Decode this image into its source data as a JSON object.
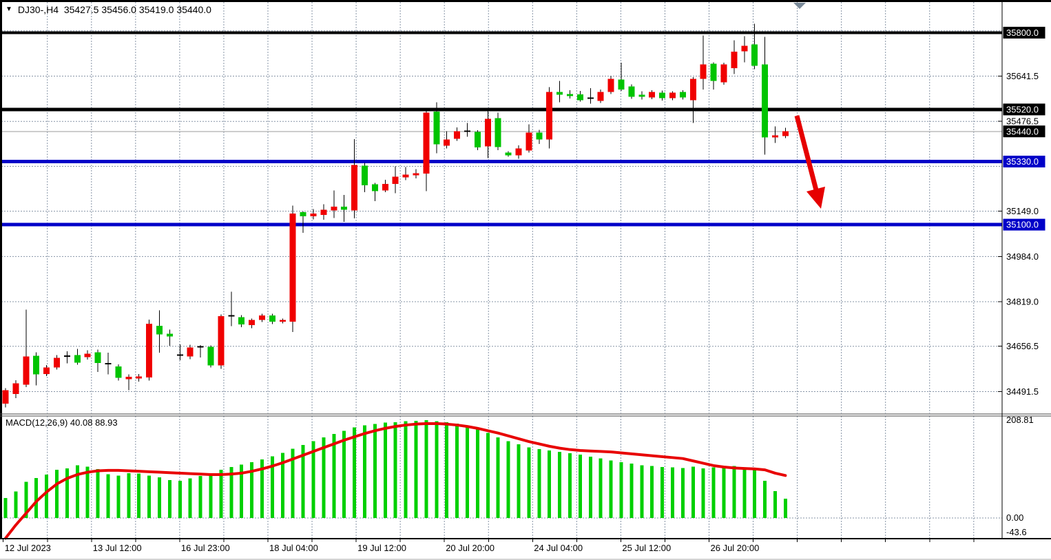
{
  "window": {
    "app": "trading-chart"
  },
  "title": {
    "symbol_period": "DJ30-,H4",
    "ohlc_line": "35427.5 35456.0 35419.0 35440.0"
  },
  "colors": {
    "bull_candle": "#f00000",
    "bear_candle": "#00c400",
    "doji": "#000000",
    "hist_green": "#00d000",
    "signal_red": "#e80000",
    "arrow_red": "#e60000",
    "level_black": "#000000",
    "level_blue": "#0000c8",
    "bid_line": "#9b9b9b",
    "grid": "#8593a5",
    "badge_black": "#000000",
    "badge_blue": "#0000c8",
    "badge_text": "#ffffff",
    "shift_marker": "#7a8a99",
    "background": "#ffffff"
  },
  "chart_data": [
    {
      "type": "candlestick",
      "title": "DJ30-,H4",
      "legend_position": "top-left",
      "grid": "on",
      "ylim_visible": [
        34412,
        35911
      ],
      "price_axis_labels": [
        "35641.5",
        "35476.5",
        "35149.0",
        "34984.0",
        "34819.0",
        "34656.5",
        "34491.5"
      ],
      "price_axis_label_values": [
        35641.5,
        35476.5,
        35149.0,
        34984.0,
        34819.0,
        34656.5,
        34491.5
      ],
      "grid_prices": [
        35806.5,
        35641.5,
        35476.5,
        35312.5,
        35149.0,
        34984.0,
        34819.0,
        34656.5,
        34491.5
      ],
      "badges": [
        {
          "text": "35800.0",
          "value": 35800.0,
          "style": "black"
        },
        {
          "text": "35520.0",
          "value": 35520.0,
          "style": "black"
        },
        {
          "text": "35440.0",
          "value": 35440.0,
          "style": "black"
        },
        {
          "text": "35330.0",
          "value": 35330.0,
          "style": "blue"
        },
        {
          "text": "35100.0",
          "value": 35100.0,
          "style": "blue"
        }
      ],
      "hlines": [
        {
          "value": 35800.0,
          "color": "black",
          "width": 4
        },
        {
          "value": 35520.0,
          "color": "black",
          "width": 5
        },
        {
          "value": 35330.0,
          "color": "blue",
          "width": 5
        },
        {
          "value": 35100.0,
          "color": "blue",
          "width": 5
        }
      ],
      "current_price": {
        "value": 35440.0,
        "text": "35440.0"
      },
      "time_axis_labels": [
        {
          "m": 0,
          "label": "12 Jul 2023"
        },
        {
          "m": 2,
          "label": "13 Jul 12:00"
        },
        {
          "m": 4,
          "label": "16 Jul 23:00"
        },
        {
          "m": 6,
          "label": "18 Jul 04:00"
        },
        {
          "m": 8,
          "label": "19 Jul 12:00"
        },
        {
          "m": 10,
          "label": "20 Jul 20:00"
        },
        {
          "m": 12,
          "label": "24 Jul 04:00"
        },
        {
          "m": 14,
          "label": "25 Jul 12:00"
        },
        {
          "m": 16,
          "label": "26 Jul 20:00"
        }
      ],
      "arrow_annotation": {
        "from_price_xy": [
          1157,
          168
        ],
        "to_price_xy": [
          1192,
          303
        ]
      },
      "candles_ohlc": [
        [
          34448,
          34504,
          34434,
          34496
        ],
        [
          34482,
          34533,
          34468,
          34521
        ],
        [
          34516,
          34790,
          34508,
          34620
        ],
        [
          34622,
          34634,
          34514,
          34554
        ],
        [
          34556,
          34588,
          34548,
          34579
        ],
        [
          34579,
          34625,
          34572,
          34614
        ],
        [
          34617,
          34638,
          34594,
          34621
        ],
        [
          34625,
          34647,
          34589,
          34597
        ],
        [
          34617,
          34642,
          34608,
          34629
        ],
        [
          34635,
          34645,
          34563,
          34595
        ],
        [
          34589,
          34633,
          34554,
          34593
        ],
        [
          34583,
          34591,
          34532,
          34541
        ],
        [
          34537,
          34554,
          34497,
          34545
        ],
        [
          34539,
          34556,
          34528,
          34547
        ],
        [
          34543,
          34754,
          34532,
          34739
        ],
        [
          34731,
          34788,
          34633,
          34700
        ],
        [
          34702,
          34718,
          34658,
          34692
        ],
        [
          34620,
          34664,
          34606,
          34624
        ],
        [
          34619,
          34662,
          34610,
          34652
        ],
        [
          34650,
          34661,
          34616,
          34654
        ],
        [
          34654,
          34660,
          34579,
          34587
        ],
        [
          34587,
          34772,
          34574,
          34766
        ],
        [
          34763,
          34855,
          34730,
          34768
        ],
        [
          34763,
          34770,
          34726,
          34736
        ],
        [
          34734,
          34758,
          34722,
          34752
        ],
        [
          34752,
          34775,
          34745,
          34769
        ],
        [
          34769,
          34775,
          34738,
          34746
        ],
        [
          34746,
          34758,
          34740,
          34752
        ],
        [
          34746,
          35169,
          34708,
          35141
        ],
        [
          35145,
          35148,
          35070,
          35131
        ],
        [
          35131,
          35157,
          35119,
          35141
        ],
        [
          35135,
          35175,
          35118,
          35154
        ],
        [
          35152,
          35225,
          35124,
          35166
        ],
        [
          35166,
          35208,
          35110,
          35154
        ],
        [
          35152,
          35412,
          35123,
          35318
        ],
        [
          35315,
          35325,
          35219,
          35244
        ],
        [
          35247,
          35252,
          35186,
          35222
        ],
        [
          35225,
          35263,
          35218,
          35248
        ],
        [
          35248,
          35313,
          35215,
          35275
        ],
        [
          35273,
          35310,
          35262,
          35283
        ],
        [
          35280,
          35302,
          35268,
          35288
        ],
        [
          35286,
          35520,
          35222,
          35509
        ],
        [
          35512,
          35546,
          35360,
          35393
        ],
        [
          35388,
          35441,
          35378,
          35411
        ],
        [
          35413,
          35455,
          35405,
          35441
        ],
        [
          35437,
          35471,
          35421,
          35441
        ],
        [
          35438,
          35445,
          35372,
          35381
        ],
        [
          35386,
          35516,
          35343,
          35486
        ],
        [
          35488,
          35509,
          35371,
          35383
        ],
        [
          35363,
          35368,
          35348,
          35353
        ],
        [
          35353,
          35389,
          35340,
          35378
        ],
        [
          35370,
          35466,
          35363,
          35435
        ],
        [
          35435,
          35446,
          35394,
          35410
        ],
        [
          35410,
          35601,
          35378,
          35584
        ],
        [
          35584,
          35624,
          35546,
          35574
        ],
        [
          35576,
          35590,
          35560,
          35569
        ],
        [
          35575,
          35588,
          35548,
          35554
        ],
        [
          35558,
          35597,
          35541,
          35561
        ],
        [
          35551,
          35592,
          35544,
          35584
        ],
        [
          35584,
          35642,
          35576,
          35632
        ],
        [
          35629,
          35690,
          35588,
          35592
        ],
        [
          35604,
          35612,
          35559,
          35566
        ],
        [
          35574,
          35586,
          35556,
          35566
        ],
        [
          35564,
          35590,
          35558,
          35584
        ],
        [
          35581,
          35589,
          35552,
          35561
        ],
        [
          35561,
          35586,
          35554,
          35581
        ],
        [
          35584,
          35590,
          35556,
          35564
        ],
        [
          35554,
          35638,
          35471,
          35631
        ],
        [
          35631,
          35790,
          35592,
          35684
        ],
        [
          35687,
          35692,
          35592,
          35624
        ],
        [
          35619,
          35690,
          35610,
          35684
        ],
        [
          35670,
          35772,
          35649,
          35731
        ],
        [
          35732,
          35787,
          35692,
          35752
        ],
        [
          35757,
          35833,
          35667,
          35679
        ],
        [
          35684,
          35785,
          35355,
          35418
        ],
        [
          35418,
          35458,
          35398,
          35426
        ],
        [
          35423,
          35453,
          35416,
          35441
        ]
      ]
    },
    {
      "type": "bar",
      "title": "MACD(12,26,9)",
      "legend": "MACD(12,26,9) 40.08 88.93",
      "main_value": "40.08",
      "signal_value": "88.93",
      "axis_labels": [
        "208.81",
        "0.00",
        "-43.6"
      ],
      "ylim_visible": [
        -45,
        216
      ],
      "histogram": [
        42,
        56,
        77,
        85,
        92,
        102,
        105,
        112,
        109,
        104,
        93,
        90,
        95,
        94,
        90,
        86,
        80,
        79,
        84,
        89,
        95,
        102,
        108,
        113,
        118,
        124,
        131,
        138,
        147,
        155,
        163,
        171,
        178,
        185,
        192,
        196,
        199,
        202,
        203,
        205,
        206,
        207,
        205,
        203,
        200,
        196,
        189,
        180,
        171,
        163,
        156,
        150,
        146,
        143,
        140,
        137,
        134,
        130,
        126,
        122,
        118,
        115,
        112,
        110,
        108,
        107,
        106,
        109,
        105,
        107,
        108,
        110,
        105,
        105,
        79,
        57,
        41
      ],
      "signal": [
        -43,
        -15,
        10,
        35,
        55,
        72,
        84,
        92,
        97,
        100,
        101,
        101,
        100,
        99,
        98,
        97,
        96,
        95,
        94,
        93,
        92,
        92,
        93,
        95,
        99,
        104,
        110,
        117,
        125,
        133,
        141,
        149,
        157,
        165,
        172,
        179,
        185,
        190,
        194,
        197,
        199,
        200,
        200,
        199,
        197,
        194,
        190,
        185,
        180,
        174,
        168,
        162,
        157,
        152,
        148,
        145,
        143,
        142,
        141,
        140,
        138,
        136,
        134,
        132,
        130,
        128,
        126,
        121,
        116,
        111,
        108,
        106,
        105,
        104,
        102,
        95,
        90
      ]
    }
  ]
}
